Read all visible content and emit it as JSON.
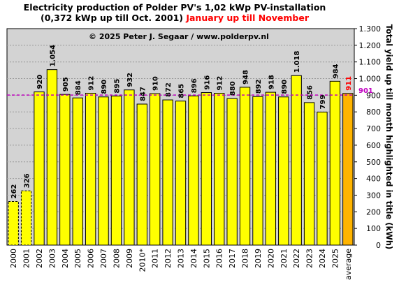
{
  "title_line1": "Electricity production  of Polder PV's 1,02 kWp PV-installation",
  "title_line2_black": "(0,372 kWp up till Oct. 2001) ",
  "title_line2_red": "January up till November",
  "copyright": "© 2025 Peter J. Segaar / www.polderpv.nl",
  "colors": {
    "plot_bg": "#d3d3d3",
    "bar_fill": "#ffff00",
    "average_fill": "#ffb400",
    "reference_line": "#c000c0",
    "average_label": "#ff0000",
    "reference_label": "#c000c0"
  },
  "chart_data": {
    "type": "bar",
    "categories": [
      "2000",
      "2001",
      "2002",
      "2003",
      "2004",
      "2005",
      "2006",
      "2007",
      "2008",
      "2009",
      "2010*",
      "2011",
      "2012",
      "2013",
      "2014",
      "2015",
      "2016",
      "2017",
      "2018",
      "2019",
      "2020",
      "2021",
      "2022",
      "2023",
      "2024",
      "2025",
      "average"
    ],
    "values": [
      262,
      326,
      920,
      1054,
      905,
      884,
      912,
      890,
      895,
      932,
      847,
      910,
      872,
      865,
      896,
      916,
      912,
      880,
      948,
      892,
      918,
      890,
      1018,
      856,
      799,
      984,
      911
    ],
    "value_labels": [
      "262",
      "326",
      "920",
      "1.054",
      "905",
      "884",
      "912",
      "890",
      "895",
      "932",
      "847",
      "910",
      "872",
      "865",
      "896",
      "916",
      "912",
      "880",
      "948",
      "892",
      "918",
      "890",
      "1.018",
      "856",
      "799",
      "984",
      "911"
    ],
    "dashed_bars": [
      "2000",
      "2001"
    ],
    "ylabel": "Total yield up till month highlighted in title (kWh)",
    "ylim": [
      0,
      1300
    ],
    "yticks": [
      0,
      100,
      200,
      300,
      400,
      500,
      600,
      700,
      800,
      900,
      1000,
      1100,
      1200,
      1300
    ],
    "ytick_labels": [
      "0",
      "100",
      "200",
      "300",
      "400",
      "500",
      "600",
      "700",
      "800",
      "900",
      "1.000",
      "1.100",
      "1.200",
      "1.300"
    ],
    "reference_line": {
      "value": 901,
      "label": "901"
    },
    "grid": true
  }
}
